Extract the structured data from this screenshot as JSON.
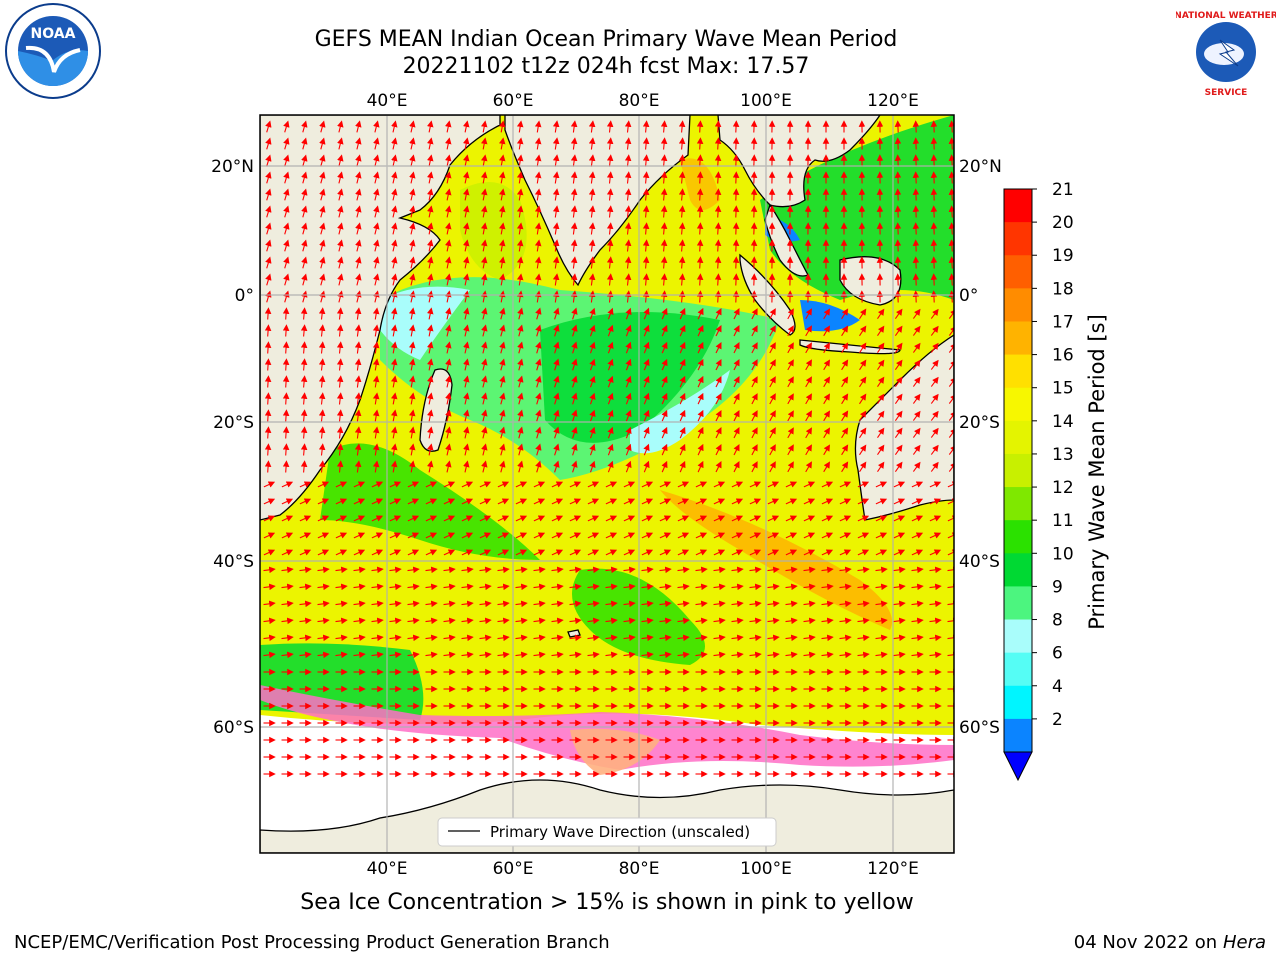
{
  "title_line1": "GEFS MEAN Indian Ocean Primary Wave Mean Period",
  "title_line2": "20221102 t12z 024h fcst   Max: 17.57",
  "map": {
    "lon_ticks": [
      "40°E",
      "60°E",
      "80°E",
      "100°E",
      "120°E"
    ],
    "lat_ticks_left": [
      "20°N",
      "0°",
      "20°S",
      "40°S",
      "60°S"
    ],
    "lat_ticks_right": [
      "20°N",
      "0°",
      "20°S",
      "40°S",
      "60°S"
    ],
    "legend_label": "Primary Wave Direction (unscaled)",
    "colors": {
      "land": "#efedde",
      "ocean_base": "#ecf400",
      "ice": "#ff6ec7",
      "arrow": "#ff0000"
    }
  },
  "colorbar": {
    "label": "Primary Wave Mean Period [s]",
    "ticks": [
      "21",
      "20",
      "19",
      "18",
      "17",
      "16",
      "15",
      "14",
      "13",
      "12",
      "11",
      "10",
      "9",
      "8",
      "6",
      "4",
      "2"
    ],
    "colors": [
      "#ff0000",
      "#ff3500",
      "#ff5f00",
      "#ff8c00",
      "#ffb300",
      "#ffe000",
      "#f7f700",
      "#e4f400",
      "#c8f000",
      "#7fe800",
      "#2be100",
      "#00d933",
      "#4cf57f",
      "#a9fdfb",
      "#55fdf5",
      "#00f5ff",
      "#0b84ff"
    ]
  },
  "sea_ice_note": "Sea Ice Concentration > 15% is shown in pink to yellow",
  "footer_left": "NCEP/EMC/Verification Post Processing Product Generation Branch",
  "footer_date": "04 Nov 2022 on",
  "footer_machine": "Hera",
  "logos": {
    "left": "NOAA",
    "right_top": "NATIONAL WEATHER",
    "right_bottom": "SERVICE"
  }
}
